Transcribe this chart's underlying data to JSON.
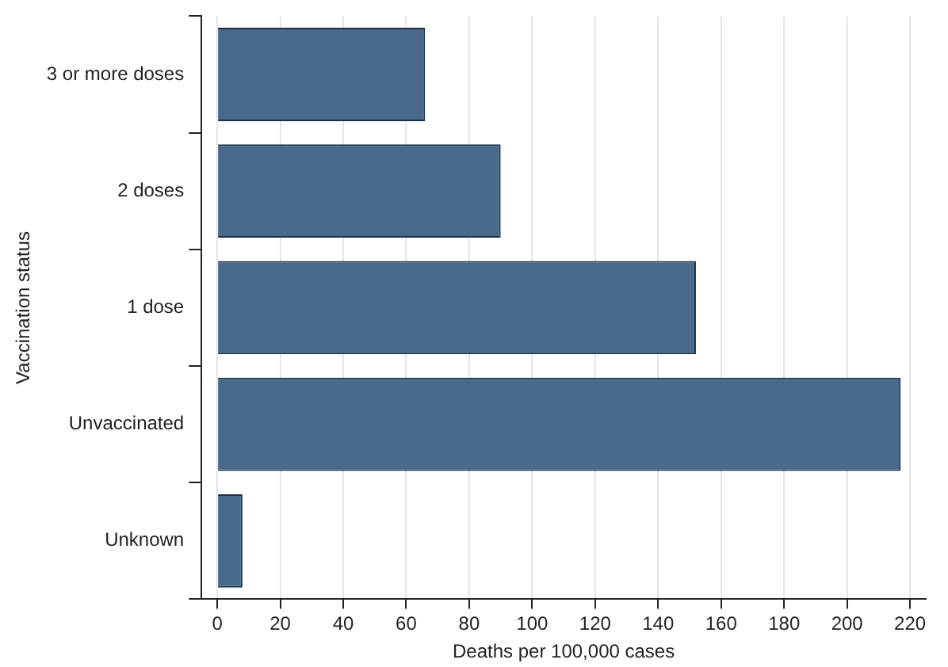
{
  "chart_data": {
    "type": "bar",
    "orientation": "horizontal",
    "xlabel": "Deaths per 100,000 cases",
    "ylabel": "Vaccination status",
    "categories": [
      "3 or more doses",
      "2 doses",
      "1 dose",
      "Unvaccinated",
      "Unknown"
    ],
    "values": [
      66,
      90,
      152,
      217,
      8
    ],
    "color": "#48698a",
    "xlim": [
      -5,
      225
    ],
    "xticks": [
      0,
      20,
      40,
      60,
      80,
      100,
      120,
      140,
      160,
      180,
      200,
      220
    ],
    "grid": "x",
    "legend": false
  }
}
